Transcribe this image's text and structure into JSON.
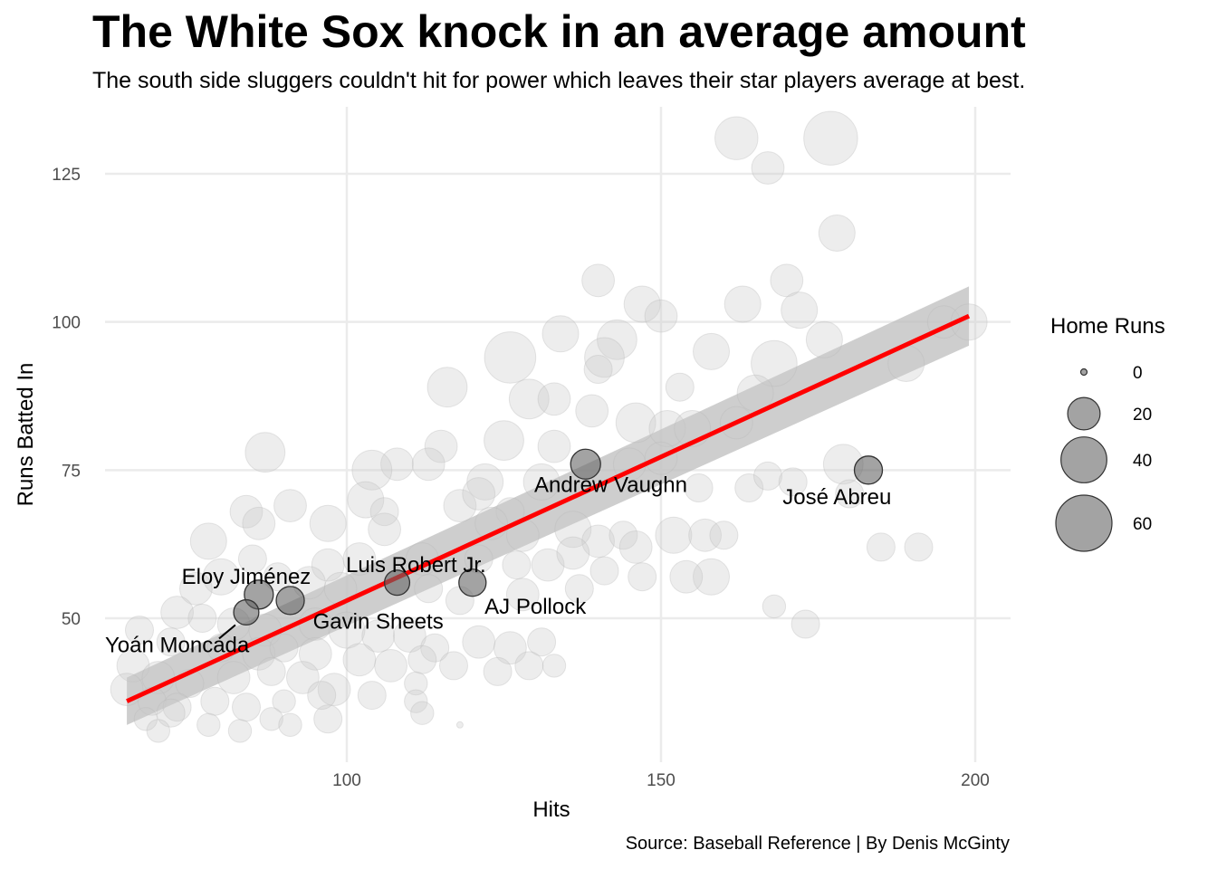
{
  "title": "The White Sox knock in an average amount",
  "subtitle": "The south side sluggers couldn't hit for power which leaves their star players average at best.",
  "caption": "Source: Baseball Reference | By Denis McGinty",
  "colors": {
    "background_points": "#cccccc",
    "highlight_points": "#666666",
    "trend_line": "#ff0000",
    "confidence_band": "#bdbdbd",
    "grid": "#ebebeb"
  },
  "chart_data": {
    "type": "scatter",
    "title": "The White Sox knock in an average amount",
    "subtitle": "The south side sluggers couldn't hit for power which leaves their star players average at best.",
    "xlabel": "Hits",
    "ylabel": "Runs Batted In",
    "xlim": [
      60,
      206
    ],
    "ylim": [
      25,
      137
    ],
    "x_ticks": [
      100,
      150,
      200
    ],
    "y_ticks": [
      50,
      75,
      100,
      125
    ],
    "grid": true,
    "legend": {
      "title": "Home Runs",
      "position": "right",
      "sizes": [
        0,
        20,
        40,
        60
      ],
      "labels": [
        "0",
        "20",
        "40",
        "60"
      ]
    },
    "trend_line": {
      "method": "linear",
      "x": [
        65,
        199
      ],
      "y": [
        36,
        101
      ],
      "band_lower": [
        32,
        96
      ],
      "band_upper": [
        40,
        106
      ]
    },
    "highlighted_players": [
      {
        "name": "Andrew Vaughn",
        "hits": 138,
        "rbi": 76,
        "hr": 17,
        "label_dx": 4,
        "label_dy": -3.5
      },
      {
        "name": "José Abreu",
        "hits": 183,
        "rbi": 75,
        "hr": 15,
        "label_dx": -5,
        "label_dy": -4.5
      },
      {
        "name": "Luis Robert Jr.",
        "hits": 108,
        "rbi": 56,
        "hr": 12,
        "label_dx": 3,
        "label_dy": 3
      },
      {
        "name": "AJ Pollock",
        "hits": 120,
        "rbi": 56,
        "hr": 14,
        "label_dx": 10,
        "label_dy": -4
      },
      {
        "name": "Eloy Jiménez",
        "hits": 86,
        "rbi": 54,
        "hr": 16,
        "label_dx": -2,
        "label_dy": 3
      },
      {
        "name": "Gavin Sheets",
        "hits": 91,
        "rbi": 53,
        "hr": 15,
        "label_dx": 14,
        "label_dy": -3.5
      },
      {
        "name": "Yoán Moncada",
        "hits": 84,
        "rbi": 51,
        "hr": 12,
        "label_dx": -11,
        "label_dy": -5.5
      }
    ],
    "other_players": [
      [
        162,
        131,
        35
      ],
      [
        177,
        131,
        55
      ],
      [
        167,
        126,
        20
      ],
      [
        178,
        115,
        25
      ],
      [
        140,
        107,
        20
      ],
      [
        170,
        107,
        20
      ],
      [
        147,
        103,
        25
      ],
      [
        163,
        103,
        25
      ],
      [
        172,
        102,
        25
      ],
      [
        195,
        100,
        20
      ],
      [
        199,
        100,
        25
      ],
      [
        150,
        101,
        20
      ],
      [
        134,
        98,
        25
      ],
      [
        143,
        97,
        30
      ],
      [
        176,
        97,
        25
      ],
      [
        126,
        94,
        50
      ],
      [
        141,
        94,
        30
      ],
      [
        158,
        95,
        25
      ],
      [
        168,
        93,
        40
      ],
      [
        189,
        93,
        25
      ],
      [
        140,
        92,
        15
      ],
      [
        116,
        89,
        30
      ],
      [
        129,
        87,
        30
      ],
      [
        133,
        87,
        20
      ],
      [
        153,
        89,
        15
      ],
      [
        165,
        88,
        25
      ],
      [
        139,
        85,
        20
      ],
      [
        146,
        83,
        30
      ],
      [
        151,
        82,
        25
      ],
      [
        155,
        82,
        25
      ],
      [
        162,
        83,
        20
      ],
      [
        125,
        80,
        30
      ],
      [
        133,
        79,
        20
      ],
      [
        108,
        76,
        20
      ],
      [
        115,
        79,
        20
      ],
      [
        113,
        76,
        20
      ],
      [
        145,
        76,
        20
      ],
      [
        150,
        77,
        20
      ],
      [
        156,
        72,
        15
      ],
      [
        164,
        72,
        15
      ],
      [
        167,
        74,
        15
      ],
      [
        171,
        73,
        15
      ],
      [
        179,
        76,
        30
      ],
      [
        180,
        71,
        15
      ],
      [
        104,
        75,
        30
      ],
      [
        122,
        73,
        25
      ],
      [
        87,
        78,
        30
      ],
      [
        131,
        73,
        25
      ],
      [
        118,
        69,
        20
      ],
      [
        121,
        71,
        20
      ],
      [
        126,
        68,
        15
      ],
      [
        103,
        70,
        25
      ],
      [
        91,
        69,
        20
      ],
      [
        84,
        68,
        20
      ],
      [
        86,
        66,
        20
      ],
      [
        97,
        66,
        25
      ],
      [
        106,
        68,
        15
      ],
      [
        106,
        65,
        20
      ],
      [
        123,
        66,
        20
      ],
      [
        128,
        64,
        20
      ],
      [
        136,
        65,
        25
      ],
      [
        140,
        63,
        20
      ],
      [
        144,
        64,
        15
      ],
      [
        152,
        64,
        25
      ],
      [
        157,
        64,
        20
      ],
      [
        160,
        64,
        15
      ],
      [
        78,
        63,
        25
      ],
      [
        85,
        60,
        15
      ],
      [
        97,
        59,
        20
      ],
      [
        102,
        60,
        20
      ],
      [
        112,
        60,
        20
      ],
      [
        121,
        60,
        15
      ],
      [
        127,
        59,
        15
      ],
      [
        132,
        59,
        20
      ],
      [
        136,
        61,
        20
      ],
      [
        141,
        58,
        15
      ],
      [
        146,
        62,
        20
      ],
      [
        158,
        57,
        25
      ],
      [
        154,
        57,
        20
      ],
      [
        147,
        57,
        15
      ],
      [
        185,
        62,
        15
      ],
      [
        191,
        62,
        15
      ],
      [
        80,
        57,
        25
      ],
      [
        76,
        55,
        20
      ],
      [
        89,
        57,
        15
      ],
      [
        94,
        56,
        20
      ],
      [
        99,
        55,
        20
      ],
      [
        113,
        55,
        15
      ],
      [
        118,
        53,
        15
      ],
      [
        128,
        54,
        20
      ],
      [
        137,
        55,
        15
      ],
      [
        168,
        52,
        10
      ],
      [
        73,
        51,
        20
      ],
      [
        77,
        50,
        15
      ],
      [
        82,
        49,
        20
      ],
      [
        87,
        48,
        20
      ],
      [
        95,
        49,
        20
      ],
      [
        100,
        48,
        25
      ],
      [
        105,
        47,
        20
      ],
      [
        110,
        47,
        20
      ],
      [
        114,
        45,
        15
      ],
      [
        121,
        46,
        20
      ],
      [
        126,
        45,
        20
      ],
      [
        131,
        46,
        15
      ],
      [
        173,
        49,
        15
      ],
      [
        67,
        48,
        15
      ],
      [
        72,
        46,
        15
      ],
      [
        80,
        45,
        15
      ],
      [
        86,
        44,
        20
      ],
      [
        90,
        45,
        15
      ],
      [
        95,
        44,
        20
      ],
      [
        102,
        43,
        20
      ],
      [
        107,
        42,
        20
      ],
      [
        112,
        43,
        15
      ],
      [
        117,
        42,
        15
      ],
      [
        124,
        41,
        15
      ],
      [
        129,
        42,
        15
      ],
      [
        133,
        42,
        10
      ],
      [
        66,
        42,
        20
      ],
      [
        70,
        40,
        20
      ],
      [
        75,
        39,
        15
      ],
      [
        82,
        40,
        20
      ],
      [
        88,
        41,
        15
      ],
      [
        93,
        40,
        20
      ],
      [
        98,
        38,
        20
      ],
      [
        104,
        37,
        15
      ],
      [
        111,
        39,
        10
      ],
      [
        65,
        38,
        20
      ],
      [
        69,
        36,
        15
      ],
      [
        73,
        35,
        15
      ],
      [
        79,
        36,
        15
      ],
      [
        84,
        35,
        15
      ],
      [
        90,
        36,
        10
      ],
      [
        97,
        33,
        15
      ],
      [
        111,
        36,
        10
      ],
      [
        68,
        33,
        10
      ],
      [
        72,
        34,
        15
      ],
      [
        78,
        32,
        10
      ],
      [
        83,
        31,
        10
      ],
      [
        88,
        33,
        10
      ],
      [
        91,
        32,
        10
      ],
      [
        96,
        37,
        15
      ],
      [
        112,
        34,
        10
      ],
      [
        70,
        31,
        10
      ],
      [
        118,
        32,
        0
      ]
    ]
  }
}
